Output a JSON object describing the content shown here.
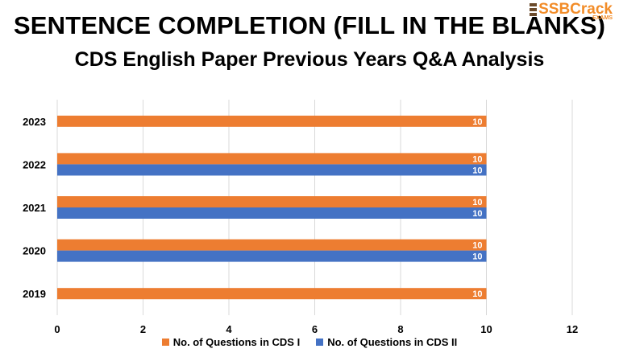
{
  "header": {
    "title": "SENTENCE COMPLETION (FILL IN THE BLANKS)",
    "subtitle": "CDS English Paper Previous Years Q&A Analysis"
  },
  "logo": {
    "brand": "SSBCrack",
    "tagline": "EXAMS",
    "color": "#f28c28"
  },
  "chart_data": {
    "type": "bar",
    "orientation": "horizontal",
    "categories": [
      "2023",
      "2022",
      "2021",
      "2020",
      "2019"
    ],
    "series": [
      {
        "name": "No. of Questions in CDS I",
        "color": "#ed7d31",
        "values": [
          10,
          10,
          10,
          10,
          10
        ]
      },
      {
        "name": "No. of Questions in CDS II",
        "color": "#4472c4",
        "values": [
          null,
          10,
          10,
          10,
          null
        ]
      }
    ],
    "xlim": [
      0,
      12
    ],
    "xticks": [
      0,
      2,
      4,
      6,
      8,
      10,
      12
    ],
    "grid": true,
    "data_labels": true,
    "legend": "bottom-center",
    "xlabel": "",
    "ylabel": ""
  }
}
